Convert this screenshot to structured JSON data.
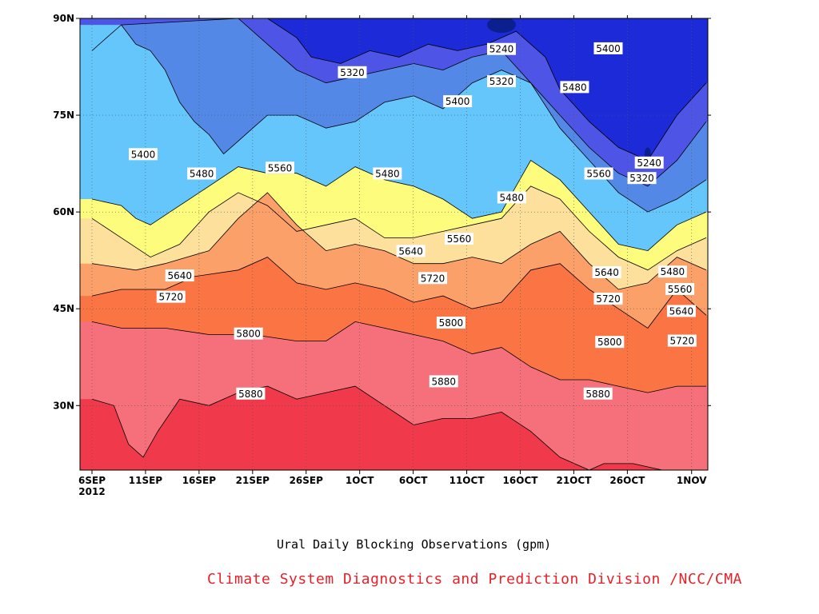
{
  "chart_data": {
    "type": "heatmap",
    "subtype": "filled-contour",
    "title": "Ural Daily Blocking Observations (gpm)",
    "credit": "Climate System Diagnostics and Prediction Division /NCC/CMA",
    "x_ticks": [
      "6SEP",
      "11SEP",
      "16SEP",
      "21SEP",
      "26SEP",
      "1OCT",
      "6OCT",
      "11OCT",
      "16OCT",
      "21OCT",
      "26OCT",
      "1NOV"
    ],
    "x_tick_year": "2012",
    "y_ticks": [
      "30N",
      "45N",
      "60N",
      "75N",
      "90N"
    ],
    "x_range": [
      "2012-09-06",
      "2012-11-01"
    ],
    "y_range_deg": [
      20,
      90
    ],
    "contour_levels": [
      5240,
      5320,
      5400,
      5480,
      5560,
      5640,
      5720,
      5800,
      5880
    ],
    "level_colors": [
      "#0b1f8f",
      "#1c2ad8",
      "#4e55e6",
      "#5488e6",
      "#64c6fb",
      "#fdfc7c",
      "#fde09c",
      "#fca06a",
      "#fb7444",
      "#f5707a",
      "#f0394a"
    ],
    "contour_lines_deg": {
      "5880": [
        [
          0,
          31
        ],
        [
          3,
          30
        ],
        [
          5,
          24
        ],
        [
          7,
          22
        ],
        [
          9,
          26
        ],
        [
          12,
          31
        ],
        [
          16,
          30
        ],
        [
          20,
          32
        ],
        [
          24,
          33
        ],
        [
          28,
          31
        ],
        [
          32,
          32
        ],
        [
          36,
          33
        ],
        [
          40,
          30
        ],
        [
          44,
          27
        ],
        [
          48,
          28
        ],
        [
          52,
          28
        ],
        [
          56,
          29
        ],
        [
          60,
          26
        ],
        [
          64,
          22
        ],
        [
          68,
          20
        ],
        [
          70,
          21
        ],
        [
          74,
          21
        ],
        [
          78,
          20
        ]
      ],
      "5800": [
        [
          0,
          43
        ],
        [
          4,
          42
        ],
        [
          10,
          42
        ],
        [
          16,
          41
        ],
        [
          22,
          41
        ],
        [
          28,
          40
        ],
        [
          32,
          40
        ],
        [
          36,
          43
        ],
        [
          40,
          42
        ],
        [
          44,
          41
        ],
        [
          48,
          40
        ],
        [
          52,
          38
        ],
        [
          56,
          39
        ],
        [
          60,
          36
        ],
        [
          64,
          34
        ],
        [
          68,
          34
        ],
        [
          72,
          33
        ],
        [
          76,
          32
        ],
        [
          80,
          33
        ],
        [
          84,
          33
        ]
      ],
      "5720": [
        [
          0,
          47
        ],
        [
          4,
          48
        ],
        [
          10,
          48
        ],
        [
          14,
          50
        ],
        [
          20,
          51
        ],
        [
          24,
          53
        ],
        [
          28,
          49
        ],
        [
          32,
          48
        ],
        [
          36,
          49
        ],
        [
          40,
          48
        ],
        [
          44,
          46
        ],
        [
          48,
          47
        ],
        [
          52,
          45
        ],
        [
          56,
          46
        ],
        [
          60,
          51
        ],
        [
          64,
          52
        ],
        [
          68,
          48
        ],
        [
          72,
          45
        ],
        [
          76,
          42
        ],
        [
          80,
          48
        ],
        [
          84,
          44
        ]
      ],
      "5640": [
        [
          0,
          52
        ],
        [
          6,
          51
        ],
        [
          10,
          52
        ],
        [
          16,
          54
        ],
        [
          20,
          59
        ],
        [
          24,
          63
        ],
        [
          28,
          58
        ],
        [
          32,
          54
        ],
        [
          36,
          55
        ],
        [
          40,
          54
        ],
        [
          44,
          52
        ],
        [
          48,
          52
        ],
        [
          52,
          53
        ],
        [
          56,
          52
        ],
        [
          60,
          55
        ],
        [
          64,
          57
        ],
        [
          68,
          52
        ],
        [
          72,
          48
        ],
        [
          76,
          49
        ],
        [
          80,
          53
        ],
        [
          84,
          51
        ]
      ],
      "5560": [
        [
          0,
          59
        ],
        [
          4,
          56
        ],
        [
          8,
          53
        ],
        [
          12,
          55
        ],
        [
          16,
          60
        ],
        [
          20,
          63
        ],
        [
          24,
          61
        ],
        [
          28,
          57
        ],
        [
          32,
          58
        ],
        [
          36,
          59
        ],
        [
          40,
          56
        ],
        [
          44,
          56
        ],
        [
          48,
          57
        ],
        [
          52,
          58
        ],
        [
          56,
          59
        ],
        [
          60,
          64
        ],
        [
          64,
          62
        ],
        [
          68,
          57
        ],
        [
          72,
          53
        ],
        [
          76,
          51
        ],
        [
          80,
          54
        ],
        [
          84,
          56
        ]
      ],
      "5480": [
        [
          0,
          62
        ],
        [
          4,
          61
        ],
        [
          6,
          59
        ],
        [
          8,
          58
        ],
        [
          12,
          61
        ],
        [
          16,
          64
        ],
        [
          20,
          67
        ],
        [
          24,
          66
        ],
        [
          28,
          66
        ],
        [
          32,
          64
        ],
        [
          36,
          67
        ],
        [
          40,
          65
        ],
        [
          44,
          64
        ],
        [
          48,
          62
        ],
        [
          52,
          59
        ],
        [
          56,
          60
        ],
        [
          60,
          68
        ],
        [
          64,
          65
        ],
        [
          68,
          60
        ],
        [
          72,
          55
        ],
        [
          76,
          54
        ],
        [
          80,
          58
        ],
        [
          84,
          60
        ]
      ],
      "5400": [
        [
          4,
          89
        ],
        [
          6,
          86
        ],
        [
          8,
          85
        ],
        [
          10,
          82
        ],
        [
          12,
          77
        ],
        [
          14,
          74
        ],
        [
          15,
          73
        ],
        [
          16,
          72
        ],
        [
          18,
          69
        ],
        [
          20,
          71
        ],
        [
          22,
          73
        ],
        [
          24,
          75
        ],
        [
          28,
          75
        ],
        [
          32,
          73
        ],
        [
          36,
          74
        ],
        [
          40,
          77
        ],
        [
          44,
          78
        ],
        [
          48,
          76
        ],
        [
          52,
          80
        ],
        [
          56,
          82
        ],
        [
          60,
          80
        ],
        [
          64,
          73
        ],
        [
          68,
          68
        ],
        [
          72,
          63
        ],
        [
          76,
          60
        ],
        [
          80,
          62
        ],
        [
          84,
          65
        ]
      ],
      "5320": [
        [
          0,
          85
        ],
        [
          2,
          87
        ],
        [
          4,
          89
        ],
        [
          20,
          90
        ],
        [
          24,
          86
        ],
        [
          28,
          82
        ],
        [
          32,
          80
        ],
        [
          36,
          81
        ],
        [
          40,
          82
        ],
        [
          44,
          83
        ],
        [
          48,
          82
        ],
        [
          52,
          84
        ],
        [
          56,
          85
        ],
        [
          60,
          80
        ],
        [
          64,
          75
        ],
        [
          68,
          70
        ],
        [
          72,
          66
        ],
        [
          76,
          64
        ],
        [
          80,
          68
        ],
        [
          84,
          74
        ]
      ],
      "5240": [
        [
          24,
          90
        ],
        [
          28,
          87
        ],
        [
          30,
          84
        ],
        [
          34,
          83
        ],
        [
          38,
          85
        ],
        [
          42,
          84
        ],
        [
          46,
          86
        ],
        [
          50,
          85
        ],
        [
          54,
          86
        ],
        [
          58,
          88
        ],
        [
          62,
          84
        ],
        [
          64,
          79
        ],
        [
          68,
          74
        ],
        [
          72,
          70
        ],
        [
          76,
          68
        ],
        [
          80,
          75
        ],
        [
          84,
          80
        ]
      ]
    },
    "contour_labels": [
      {
        "text": "5240",
        "x_deg": 56,
        "y_deg": 85.2
      },
      {
        "text": "5240",
        "x_deg": 76.2,
        "y_deg": 67.6
      },
      {
        "text": "5320",
        "x_deg": 35.6,
        "y_deg": 81.6
      },
      {
        "text": "5320",
        "x_deg": 56,
        "y_deg": 80.2
      },
      {
        "text": "5320",
        "x_deg": 75.2,
        "y_deg": 65.2
      },
      {
        "text": "5400",
        "x_deg": 7,
        "y_deg": 68.9
      },
      {
        "text": "5400",
        "x_deg": 50,
        "y_deg": 77.1
      },
      {
        "text": "5400",
        "x_deg": 70.6,
        "y_deg": 85.3
      },
      {
        "text": "5480",
        "x_deg": 15,
        "y_deg": 65.9
      },
      {
        "text": "5480",
        "x_deg": 40.4,
        "y_deg": 65.9
      },
      {
        "text": "5480",
        "x_deg": 57.4,
        "y_deg": 62.2
      },
      {
        "text": "5480",
        "x_deg": 66,
        "y_deg": 79.3
      },
      {
        "text": "5480",
        "x_deg": 79.4,
        "y_deg": 50.7
      },
      {
        "text": "5560",
        "x_deg": 25.7,
        "y_deg": 66.8
      },
      {
        "text": "5560",
        "x_deg": 50.2,
        "y_deg": 55.8
      },
      {
        "text": "5560",
        "x_deg": 69.3,
        "y_deg": 65.9
      },
      {
        "text": "5560",
        "x_deg": 80.4,
        "y_deg": 48.0
      },
      {
        "text": "5640",
        "x_deg": 12,
        "y_deg": 50.1
      },
      {
        "text": "5640",
        "x_deg": 43.6,
        "y_deg": 53.9
      },
      {
        "text": "5640",
        "x_deg": 70.4,
        "y_deg": 50.6
      },
      {
        "text": "5640",
        "x_deg": 80.6,
        "y_deg": 44.6
      },
      {
        "text": "5720",
        "x_deg": 10.8,
        "y_deg": 46.8
      },
      {
        "text": "5720",
        "x_deg": 46.6,
        "y_deg": 49.7
      },
      {
        "text": "5720",
        "x_deg": 70.6,
        "y_deg": 46.5
      },
      {
        "text": "5720",
        "x_deg": 80.7,
        "y_deg": 40.0
      },
      {
        "text": "5800",
        "x_deg": 21.4,
        "y_deg": 41.1
      },
      {
        "text": "5800",
        "x_deg": 49.1,
        "y_deg": 42.8
      },
      {
        "text": "5800",
        "x_deg": 70.8,
        "y_deg": 39.8
      },
      {
        "text": "5880",
        "x_deg": 21.7,
        "y_deg": 31.8
      },
      {
        "text": "5880",
        "x_deg": 48.1,
        "y_deg": 33.7
      },
      {
        "text": "5880",
        "x_deg": 69.2,
        "y_deg": 31.8
      }
    ],
    "grid": true
  }
}
